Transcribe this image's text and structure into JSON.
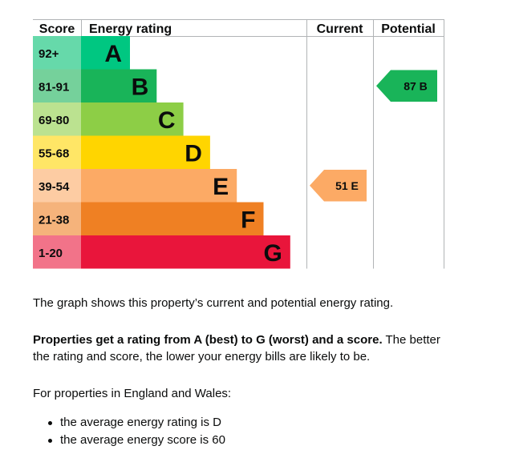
{
  "chart_data": {
    "type": "bar",
    "headers": {
      "score": "Score",
      "rating": "Energy rating",
      "current": "Current",
      "potential": "Potential"
    },
    "bands": [
      {
        "range": "92+",
        "letter": "A",
        "color": "#00c781",
        "score_bg": "#66d9aa"
      },
      {
        "range": "81-91",
        "letter": "B",
        "color": "#19b459",
        "score_bg": "#75d19b"
      },
      {
        "range": "69-80",
        "letter": "C",
        "color": "#8dce46",
        "score_bg": "#bbe290"
      },
      {
        "range": "55-68",
        "letter": "D",
        "color": "#ffd500",
        "score_bg": "#ffe666"
      },
      {
        "range": "39-54",
        "letter": "E",
        "color": "#fcaa65",
        "score_bg": "#fdcca3"
      },
      {
        "range": "21-38",
        "letter": "F",
        "color": "#ef8023",
        "score_bg": "#f5b37b"
      },
      {
        "range": "1-20",
        "letter": "G",
        "color": "#e9153b",
        "score_bg": "#f27389"
      }
    ],
    "current": {
      "score": "51",
      "letter": "E",
      "label": "51 E",
      "color": "#fcaa65"
    },
    "potential": {
      "score": "87",
      "letter": "B",
      "label": "87 B",
      "color": "#19b459"
    }
  },
  "text": {
    "graph_desc": "The graph shows this property’s current and potential energy rating.",
    "ratings_bold": "Properties get a rating from A (best) to G (worst) and a score.",
    "ratings_rest": " The better the rating and score, the lower your energy bills are likely to be.",
    "intro": "For properties in England and Wales:",
    "averages": [
      "the average energy rating is D",
      "the average energy score is 60"
    ]
  }
}
